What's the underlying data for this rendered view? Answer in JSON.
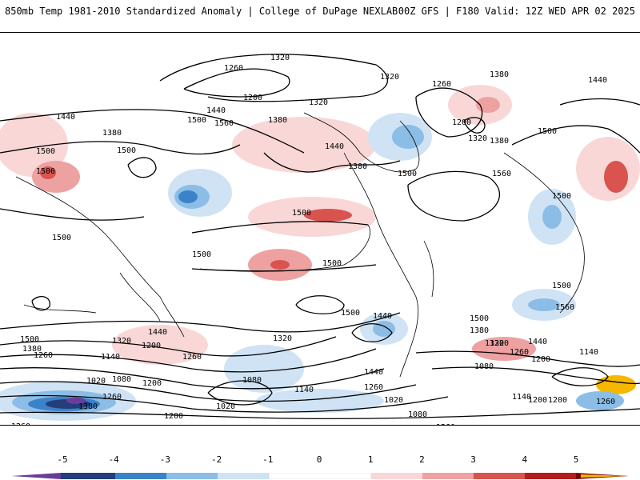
{
  "header": {
    "title_left": "850mb Temp 1981-2010 Standardized Anomaly | College of DuPage NEXLAB",
    "title_right": "00Z GFS | F180 Valid: 12Z WED APR 02 2025"
  },
  "map": {
    "contour_labels": [
      "1320",
      "1260",
      "1200",
      "1320",
      "1320",
      "1260",
      "1380",
      "1440",
      "1440",
      "1500",
      "1560",
      "1380",
      "1200",
      "1320",
      "1380",
      "1440",
      "1380",
      "1500",
      "1500",
      "1500",
      "1440",
      "1380",
      "1500",
      "1560",
      "1500",
      "1500",
      "1500",
      "1500",
      "1500",
      "1500",
      "1500",
      "1500",
      "1500",
      "1440",
      "1380",
      "1320",
      "1440",
      "1560",
      "1320",
      "1500",
      "1380",
      "1320",
      "1260",
      "1200",
      "1140",
      "1080",
      "1020",
      "1440",
      "1260",
      "1200",
      "1140",
      "1080",
      "1020",
      "1260",
      "1380",
      "1260",
      "1200",
      "1140",
      "1080",
      "1020",
      "1140",
      "1200",
      "1260",
      "1080",
      "1200",
      "1140",
      "1260",
      "1320",
      "1440",
      "1260",
      "1200",
      "1260"
    ],
    "colors": {
      "neg5": "#6a3d9a",
      "neg4": "#233e7a",
      "neg3": "#3b82c8",
      "neg2": "#8bbde6",
      "neg1": "#cfe3f5",
      "zero": "#ffffff",
      "pos1": "#f9d7d7",
      "pos2": "#eda1a1",
      "pos3": "#d9534f",
      "pos4": "#b51d1d",
      "pos5": "#7a0000",
      "pos6": "#f5b700"
    }
  },
  "colorbar": {
    "ticks": [
      "-5",
      "-4",
      "-3",
      "-2",
      "-1",
      "0",
      "1",
      "2",
      "3",
      "4",
      "5"
    ]
  }
}
